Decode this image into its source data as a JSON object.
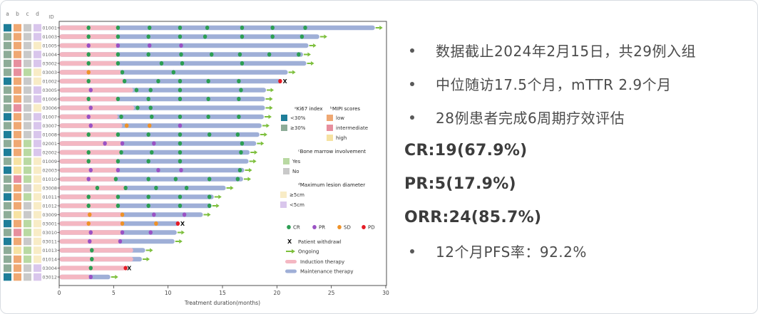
{
  "right_panel": {
    "text_color": "#4c4c4c",
    "bold_color": "#3c3c3c",
    "lines": [
      {
        "style": "bullet",
        "text": "数据截止2024年2月15日，共29例入组"
      },
      {
        "style": "bullet",
        "text": "中位随访17.5个月，mTTR 2.9个月"
      },
      {
        "style": "bullet",
        "text": "28例患者完成6周期疗效评估"
      },
      {
        "style": "bold",
        "text": "CR:19(67.9%)"
      },
      {
        "style": "bold",
        "text": "PR:5(17.9%)"
      },
      {
        "style": "bold",
        "text": "ORR:24(85.7%)"
      },
      {
        "style": "bullet",
        "text": "12个月PFS率：92.2%"
      }
    ]
  },
  "chart_data": {
    "type": "bar",
    "subtype": "swimmer-plot",
    "title": "",
    "xlabel": "Treatment duration(months)",
    "xlim": [
      0,
      30
    ],
    "xticks": [
      0,
      5,
      10,
      15,
      20,
      25,
      30
    ],
    "grid": false,
    "columns_header": [
      "a",
      "b",
      "c",
      "d"
    ],
    "id_header": "ID",
    "colors": {
      "ki67_lt30": "#1e7e99",
      "ki67_ge30": "#8dac98",
      "mipi_low": "#efa873",
      "mipi_int": "#e78f9e",
      "mipi_high": "#f6e2a2",
      "bm_yes": "#b9d9a2",
      "bm_no": "#c9c9c9",
      "lesion_ge5": "#f8ecc6",
      "lesion_lt5": "#d9c6ec",
      "induction": "#f4b7c2",
      "maintenance": "#9fafd7",
      "cr": "#2c9e53",
      "pr": "#9a52c4",
      "sd": "#ef9227",
      "pd": "#e51b25",
      "ongoing": "#7dbf3c",
      "withdraw": "#111111",
      "frame": "#3c3c3c",
      "axis_text": "#444444",
      "id_text": "#666666",
      "header_text": "#777777"
    },
    "legend": {
      "ki67": {
        "header": "ᵃKi67 index",
        "items": [
          {
            "label": "<30%",
            "key": "ki67_lt30"
          },
          {
            "label": "≥30%",
            "key": "ki67_ge30"
          }
        ]
      },
      "mipi": {
        "header": "ᵇMIPI scores",
        "items": [
          {
            "label": "low",
            "key": "mipi_low"
          },
          {
            "label": "intermediate",
            "key": "mipi_int"
          },
          {
            "label": "high",
            "key": "mipi_high"
          }
        ]
      },
      "bone_marrow": {
        "header": "ᶜBone marrow involvement",
        "items": [
          {
            "label": "Yes",
            "key": "bm_yes"
          },
          {
            "label": "No",
            "key": "bm_no"
          }
        ]
      },
      "lesion": {
        "header": "ᵈMaximum lesion diameter",
        "items": [
          {
            "label": "≥5cm",
            "key": "lesion_ge5"
          },
          {
            "label": "<5cm",
            "key": "lesion_lt5"
          }
        ]
      },
      "response": [
        {
          "label": "CR",
          "key": "cr"
        },
        {
          "label": "PR",
          "key": "pr"
        },
        {
          "label": "SD",
          "key": "sd"
        },
        {
          "label": "PD",
          "key": "pd"
        }
      ],
      "withdraw_label": "Patient withdrawl",
      "ongoing_label": "Ongoing",
      "induction_label": "Induction therapy",
      "maintenance_label": "Maintenance therapy"
    },
    "patients": [
      {
        "id": "01001",
        "ki67": "lt30",
        "mipi": "low",
        "bm": "no",
        "lesion": "lt5",
        "induction_months": 5.4,
        "total_months": 29.0,
        "end": "ongoing",
        "events": [
          {
            "m": 2.7,
            "r": "CR"
          },
          {
            "m": 5.4,
            "r": "CR"
          },
          {
            "m": 8.3,
            "r": "CR"
          },
          {
            "m": 11.1,
            "r": "CR"
          },
          {
            "m": 13.6,
            "r": "CR"
          },
          {
            "m": 16.8,
            "r": "CR"
          },
          {
            "m": 19.6,
            "r": "CR"
          },
          {
            "m": 22.6,
            "r": "CR"
          }
        ]
      },
      {
        "id": "01003",
        "ki67": "ge30",
        "mipi": "low",
        "bm": "no",
        "lesion": "lt5",
        "induction_months": 5.4,
        "total_months": 23.9,
        "end": "ongoing",
        "events": [
          {
            "m": 2.7,
            "r": "CR"
          },
          {
            "m": 5.4,
            "r": "CR"
          },
          {
            "m": 8.2,
            "r": "CR"
          },
          {
            "m": 11.1,
            "r": "CR"
          },
          {
            "m": 13.4,
            "r": "CR"
          },
          {
            "m": 16.8,
            "r": "CR"
          },
          {
            "m": 19.6,
            "r": "CR"
          },
          {
            "m": 22.3,
            "r": "CR"
          }
        ]
      },
      {
        "id": "01005",
        "ki67": "ge30",
        "mipi": "low",
        "bm": "no",
        "lesion": "ge5",
        "induction_months": 5.3,
        "total_months": 22.9,
        "end": "ongoing",
        "events": [
          {
            "m": 2.7,
            "r": "PR"
          },
          {
            "m": 5.4,
            "r": "PR"
          },
          {
            "m": 8.3,
            "r": "PR"
          },
          {
            "m": 11.2,
            "r": "PR"
          }
        ]
      },
      {
        "id": "01004",
        "ki67": "ge30",
        "mipi": "low",
        "bm": "no",
        "lesion": "lt5",
        "induction_months": 5.4,
        "total_months": 22.4,
        "end": "ongoing",
        "events": [
          {
            "m": 2.7,
            "r": "CR"
          },
          {
            "m": 5.4,
            "r": "CR"
          },
          {
            "m": 8.2,
            "r": "CR"
          },
          {
            "m": 11.2,
            "r": "CR"
          },
          {
            "m": 14.0,
            "r": "CR"
          },
          {
            "m": 16.6,
            "r": "CR"
          },
          {
            "m": 19.3,
            "r": "CR"
          },
          {
            "m": 22.0,
            "r": "CR"
          }
        ]
      },
      {
        "id": "03002",
        "ki67": "ge30",
        "mipi": "int",
        "bm": "no",
        "lesion": "lt5",
        "induction_months": 5.4,
        "total_months": 22.7,
        "end": "ongoing",
        "events": [
          {
            "m": 2.7,
            "r": "CR"
          },
          {
            "m": 5.4,
            "r": "CR"
          },
          {
            "m": 9.4,
            "r": "CR"
          },
          {
            "m": 11.3,
            "r": "CR"
          },
          {
            "m": 16.8,
            "r": "CR"
          }
        ]
      },
      {
        "id": "03003",
        "ki67": "ge30",
        "mipi": "int",
        "bm": "yes",
        "lesion": "ge5",
        "induction_months": 5.7,
        "total_months": 21.0,
        "end": "ongoing",
        "events": [
          {
            "m": 2.7,
            "r": "SD"
          },
          {
            "m": 5.8,
            "r": "CR"
          },
          {
            "m": 10.5,
            "r": "CR"
          }
        ]
      },
      {
        "id": "01002",
        "ki67": "lt30",
        "mipi": "low",
        "bm": "no",
        "lesion": "ge5",
        "induction_months": 6.0,
        "total_months": 20.4,
        "end": "withdraw",
        "events": [
          {
            "m": 2.7,
            "r": "CR"
          },
          {
            "m": 6.0,
            "r": "CR"
          },
          {
            "m": 9.1,
            "r": "CR"
          },
          {
            "m": 11.1,
            "r": "CR"
          },
          {
            "m": 13.7,
            "r": "CR"
          },
          {
            "m": 16.5,
            "r": "CR"
          },
          {
            "m": 20.3,
            "r": "PD"
          }
        ]
      },
      {
        "id": "03005",
        "ki67": "ge30",
        "mipi": "low",
        "bm": "no",
        "lesion": "lt5",
        "induction_months": 6.8,
        "total_months": 19.0,
        "end": "ongoing",
        "events": [
          {
            "m": 2.9,
            "r": "PR"
          },
          {
            "m": 7.1,
            "r": "CR"
          },
          {
            "m": 8.4,
            "r": "CR"
          },
          {
            "m": 11.1,
            "r": "CR"
          },
          {
            "m": 16.7,
            "r": "CR"
          }
        ]
      },
      {
        "id": "01006",
        "ki67": "ge30",
        "mipi": "low",
        "bm": "no",
        "lesion": "lt5",
        "induction_months": 5.4,
        "total_months": 18.9,
        "end": "ongoing",
        "events": [
          {
            "m": 2.7,
            "r": "CR"
          },
          {
            "m": 5.4,
            "r": "CR"
          },
          {
            "m": 8.2,
            "r": "CR"
          },
          {
            "m": 11.1,
            "r": "CR"
          },
          {
            "m": 13.7,
            "r": "CR"
          },
          {
            "m": 16.5,
            "r": "CR"
          }
        ]
      },
      {
        "id": "03006",
        "ki67": "ge30",
        "mipi": "int",
        "bm": "no",
        "lesion": "ge5",
        "induction_months": 6.9,
        "total_months": 18.9,
        "end": "ongoing",
        "events": [
          {
            "m": 2.9,
            "r": "PR"
          },
          {
            "m": 7.2,
            "r": "CR"
          },
          {
            "m": 8.4,
            "r": "CR"
          }
        ]
      },
      {
        "id": "01007",
        "ki67": "lt30",
        "mipi": "low",
        "bm": "no",
        "lesion": "lt5",
        "induction_months": 5.4,
        "total_months": 18.8,
        "end": "ongoing",
        "events": [
          {
            "m": 2.7,
            "r": "PR"
          },
          {
            "m": 5.7,
            "r": "CR"
          },
          {
            "m": 8.5,
            "r": "CR"
          },
          {
            "m": 11.1,
            "r": "CR"
          },
          {
            "m": 13.7,
            "r": "CR"
          },
          {
            "m": 16.5,
            "r": "CR"
          }
        ]
      },
      {
        "id": "03007",
        "ki67": "ge30",
        "mipi": "low",
        "bm": "no",
        "lesion": "lt5",
        "induction_months": 5.8,
        "total_months": 18.6,
        "end": "ongoing",
        "events": [
          {
            "m": 2.9,
            "r": "PR"
          },
          {
            "m": 6.2,
            "r": "SD"
          },
          {
            "m": 8.3,
            "r": "SD"
          },
          {
            "m": 11.1,
            "r": "PR"
          }
        ]
      },
      {
        "id": "01008",
        "ki67": "lt30",
        "mipi": "low",
        "bm": "no",
        "lesion": "lt5",
        "induction_months": 5.4,
        "total_months": 18.4,
        "end": "ongoing",
        "events": [
          {
            "m": 2.7,
            "r": "CR"
          },
          {
            "m": 5.4,
            "r": "CR"
          },
          {
            "m": 8.2,
            "r": "CR"
          },
          {
            "m": 11.1,
            "r": "CR"
          },
          {
            "m": 13.8,
            "r": "CR"
          },
          {
            "m": 16.4,
            "r": "CR"
          }
        ]
      },
      {
        "id": "02001",
        "ki67": "ge30",
        "mipi": "low",
        "bm": "yes",
        "lesion": "lt5",
        "induction_months": 5.8,
        "total_months": 18.1,
        "end": "ongoing",
        "events": [
          {
            "m": 4.2,
            "r": "PR"
          },
          {
            "m": 5.8,
            "r": "PR"
          },
          {
            "m": 8.7,
            "r": "PR"
          },
          {
            "m": 11.1,
            "r": "CR"
          },
          {
            "m": 16.8,
            "r": "CR"
          }
        ]
      },
      {
        "id": "02002",
        "ki67": "lt30",
        "mipi": "low",
        "bm": "yes",
        "lesion": "lt5",
        "induction_months": 5.7,
        "total_months": 17.5,
        "end": "ongoing",
        "events": [
          {
            "m": 2.7,
            "r": "CR"
          },
          {
            "m": 5.7,
            "r": "CR"
          },
          {
            "m": 8.5,
            "r": "CR"
          },
          {
            "m": 11.1,
            "r": "CR"
          },
          {
            "m": 16.7,
            "r": "CR"
          }
        ]
      },
      {
        "id": "01009",
        "ki67": "ge30",
        "mipi": "high",
        "bm": "yes",
        "lesion": "ge5",
        "induction_months": 5.4,
        "total_months": 17.4,
        "end": "ongoing",
        "events": [
          {
            "m": 2.7,
            "r": "CR"
          },
          {
            "m": 5.4,
            "r": "CR"
          },
          {
            "m": 8.2,
            "r": "CR"
          },
          {
            "m": 11.1,
            "r": "CR"
          }
        ]
      },
      {
        "id": "02003",
        "ki67": "lt30",
        "mipi": "high",
        "bm": "yes",
        "lesion": "ge5",
        "induction_months": 5.4,
        "total_months": 17.0,
        "end": "ongoing",
        "events": [
          {
            "m": 2.9,
            "r": "PR"
          },
          {
            "m": 5.4,
            "r": "PR"
          },
          {
            "m": 9.1,
            "r": "PR"
          },
          {
            "m": 11.2,
            "r": "PR"
          },
          {
            "m": 16.6,
            "r": "CR"
          }
        ]
      },
      {
        "id": "01010",
        "ki67": "ge30",
        "mipi": "int",
        "bm": "yes",
        "lesion": "ge5",
        "induction_months": 5.2,
        "total_months": 16.9,
        "end": "ongoing",
        "events": [
          {
            "m": 2.7,
            "r": "PR"
          },
          {
            "m": 5.2,
            "r": "CR"
          },
          {
            "m": 8.2,
            "r": "CR"
          },
          {
            "m": 10.7,
            "r": "CR"
          },
          {
            "m": 13.8,
            "r": "CR"
          },
          {
            "m": 16.4,
            "r": "CR"
          }
        ]
      },
      {
        "id": "03008",
        "ki67": "ge30",
        "mipi": "low",
        "bm": "no",
        "lesion": "ge5",
        "induction_months": 6.1,
        "total_months": 15.3,
        "end": "ongoing",
        "events": [
          {
            "m": 3.5,
            "r": "CR"
          },
          {
            "m": 6.1,
            "r": "CR"
          },
          {
            "m": 8.9,
            "r": "CR"
          },
          {
            "m": 11.7,
            "r": "CR"
          }
        ]
      },
      {
        "id": "01011",
        "ki67": "lt30",
        "mipi": "low",
        "bm": "yes",
        "lesion": "ge5",
        "induction_months": 5.4,
        "total_months": 14.2,
        "end": "ongoing",
        "events": [
          {
            "m": 2.7,
            "r": "CR"
          },
          {
            "m": 5.4,
            "r": "CR"
          },
          {
            "m": 8.2,
            "r": "CR"
          },
          {
            "m": 11.1,
            "r": "CR"
          },
          {
            "m": 13.8,
            "r": "CR"
          }
        ]
      },
      {
        "id": "01012",
        "ki67": "ge30",
        "mipi": "low",
        "bm": "no",
        "lesion": "ge5",
        "induction_months": 5.4,
        "total_months": 14.0,
        "end": "ongoing",
        "events": [
          {
            "m": 2.7,
            "r": "CR"
          },
          {
            "m": 5.4,
            "r": "CR"
          },
          {
            "m": 8.2,
            "r": "CR"
          },
          {
            "m": 11.1,
            "r": "CR"
          },
          {
            "m": 13.8,
            "r": "CR"
          }
        ]
      },
      {
        "id": "03009",
        "ki67": "ge30",
        "mipi": "high",
        "bm": "no",
        "lesion": "ge5",
        "induction_months": 5.8,
        "total_months": 13.2,
        "end": "ongoing",
        "events": [
          {
            "m": 2.8,
            "r": "SD"
          },
          {
            "m": 5.8,
            "r": "SD"
          },
          {
            "m": 8.7,
            "r": "PR"
          },
          {
            "m": 11.5,
            "r": "PR"
          }
        ]
      },
      {
        "id": "03001",
        "ki67": "lt30",
        "mipi": "low",
        "bm": "yes",
        "lesion": "ge5",
        "induction_months": 5.8,
        "total_months": 11.0,
        "end": "withdraw",
        "events": [
          {
            "m": 2.7,
            "r": "SD"
          },
          {
            "m": 5.8,
            "r": "SD"
          },
          {
            "m": 8.9,
            "r": "SD"
          },
          {
            "m": 10.9,
            "r": "PD"
          }
        ]
      },
      {
        "id": "03010",
        "ki67": "ge30",
        "mipi": "int",
        "bm": "yes",
        "lesion": "ge5",
        "induction_months": 5.8,
        "total_months": 10.8,
        "end": "ongoing",
        "events": [
          {
            "m": 2.9,
            "r": "PR"
          },
          {
            "m": 5.8,
            "r": "PR"
          },
          {
            "m": 8.4,
            "r": "PR"
          }
        ]
      },
      {
        "id": "03011",
        "ki67": "lt30",
        "mipi": "low",
        "bm": "no",
        "lesion": "ge5",
        "induction_months": 5.6,
        "total_months": 10.6,
        "end": "ongoing",
        "events": [
          {
            "m": 2.8,
            "r": "PR"
          },
          {
            "m": 5.6,
            "r": "PR"
          }
        ]
      },
      {
        "id": "01013",
        "ki67": "ge30",
        "mipi": "high",
        "bm": "yes",
        "lesion": "ge5",
        "induction_months": 6.8,
        "total_months": 7.9,
        "end": "ongoing",
        "events": [
          {
            "m": 3.0,
            "r": "CR"
          }
        ]
      },
      {
        "id": "01014",
        "ki67": "ge30",
        "mipi": "low",
        "bm": "yes",
        "lesion": "ge5",
        "induction_months": 6.8,
        "total_months": 7.6,
        "end": "ongoing",
        "events": [
          {
            "m": 3.0,
            "r": "CR"
          }
        ]
      },
      {
        "id": "03004",
        "ki67": "ge30",
        "mipi": "low",
        "bm": "no",
        "lesion": "lt5",
        "induction_months": 6.1,
        "total_months": 6.1,
        "end": "withdraw",
        "events": [
          {
            "m": 2.9,
            "r": "CR"
          },
          {
            "m": 6.1,
            "r": "PD"
          }
        ]
      },
      {
        "id": "03012",
        "ki67": "lt30",
        "mipi": "low",
        "bm": "no",
        "lesion": "lt5",
        "induction_months": 2.8,
        "total_months": 4.7,
        "end": "ongoing",
        "events": [
          {
            "m": 2.9,
            "r": "PR"
          }
        ]
      }
    ]
  }
}
